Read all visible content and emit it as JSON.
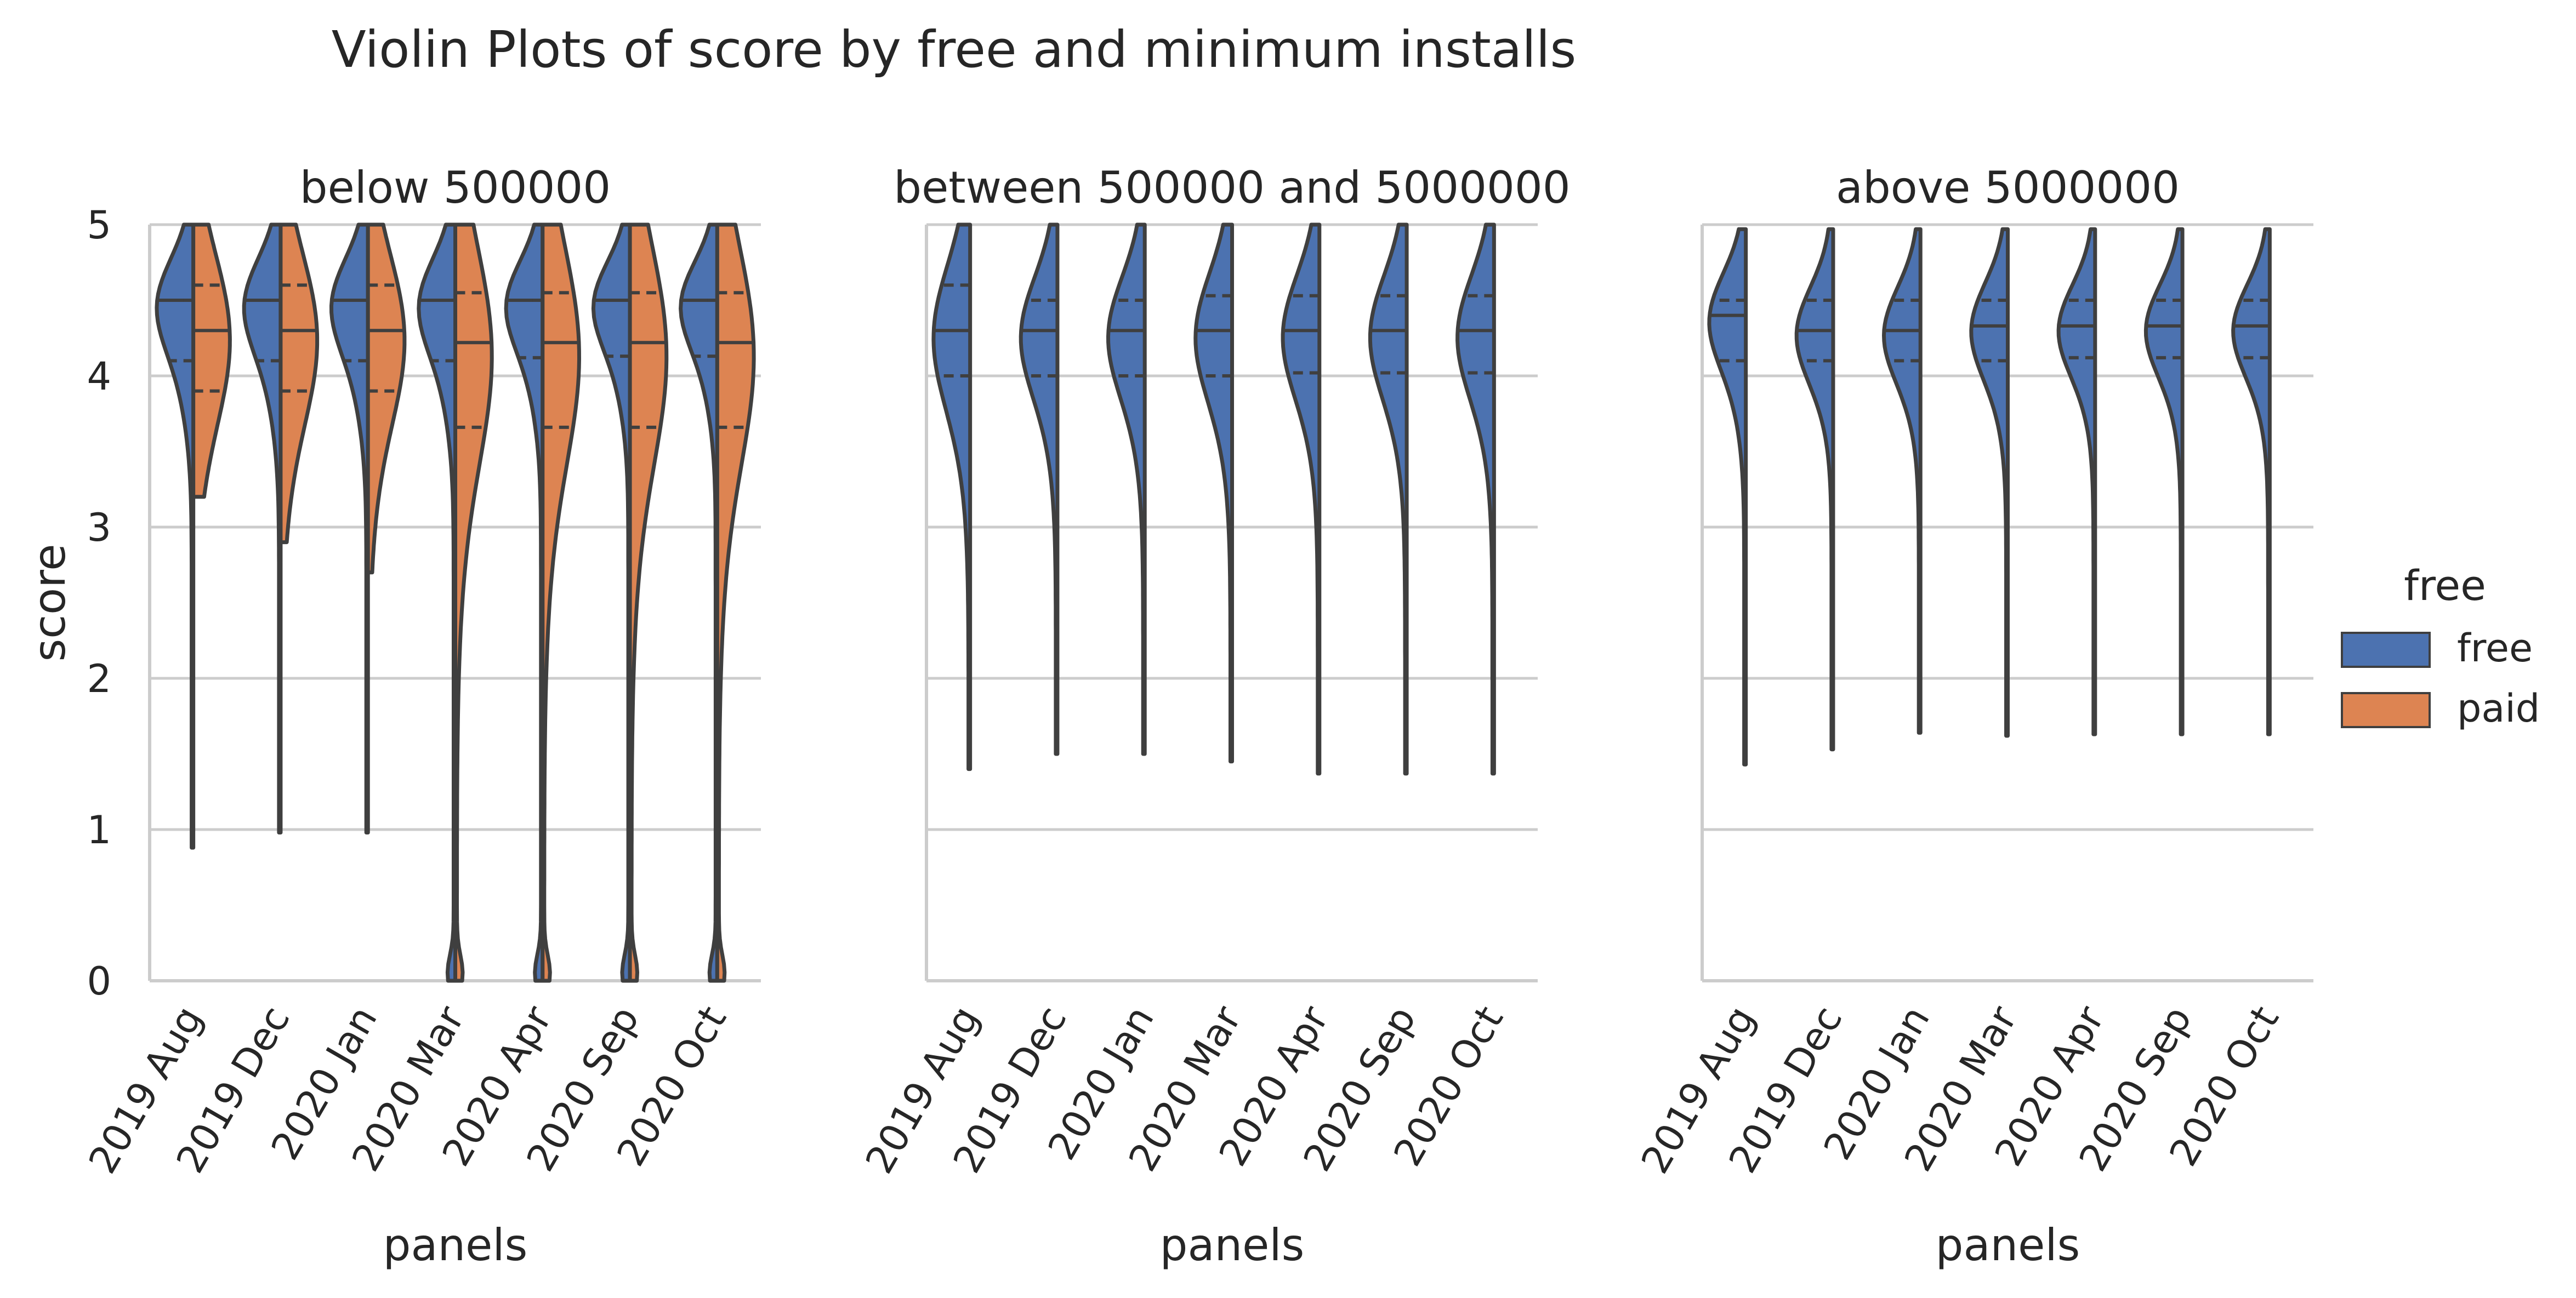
{
  "chart_data": {
    "type": "violin",
    "title": "Violin Plots of score by free and minimum installs",
    "ylabel": "score",
    "xlabel": "panels",
    "ylim": [
      0,
      5
    ],
    "yticks": [
      0,
      1,
      2,
      3,
      4,
      5
    ],
    "grid": "horizontal",
    "split": true,
    "inner": "quartile",
    "legend": {
      "title": "free",
      "placement": "right",
      "entries": [
        {
          "label": "free",
          "color": "#4c72b0"
        },
        {
          "label": "paid",
          "color": "#dd8452"
        }
      ]
    },
    "categories": [
      "2019 Aug",
      "2019 Dec",
      "2020 Jan",
      "2020 Mar",
      "2020 Apr",
      "2020 Sep",
      "2020 Oct"
    ],
    "panels": [
      {
        "title": "below 500000",
        "series": [
          {
            "name": "free",
            "min": [
              0.88,
              0.98,
              0.98,
              0.0,
              0.0,
              0.0,
              0.0
            ],
            "max": [
              5.0,
              5.0,
              5.0,
              5.0,
              5.0,
              5.0,
              5.0
            ],
            "q1": [
              4.1,
              4.1,
              4.1,
              4.1,
              4.12,
              4.13,
              4.13
            ],
            "median": [
              4.5,
              4.5,
              4.5,
              4.5,
              4.5,
              4.5,
              4.5
            ],
            "q3": [
              4.5,
              4.5,
              4.5,
              4.5,
              4.5,
              4.5,
              4.5
            ]
          },
          {
            "name": "paid",
            "min": [
              3.2,
              2.9,
              2.7,
              0.0,
              0.0,
              0.0,
              0.0
            ],
            "max": [
              5.0,
              5.0,
              5.0,
              5.0,
              5.0,
              5.0,
              5.0
            ],
            "q1": [
              3.9,
              3.9,
              3.9,
              3.66,
              3.66,
              3.66,
              3.66
            ],
            "median": [
              4.3,
              4.3,
              4.3,
              4.22,
              4.22,
              4.22,
              4.22
            ],
            "q3": [
              4.6,
              4.6,
              4.6,
              4.55,
              4.55,
              4.55,
              4.55
            ]
          }
        ]
      },
      {
        "title": "between 500000 and 5000000",
        "series": [
          {
            "name": "free",
            "min": [
              1.4,
              1.5,
              1.5,
              1.45,
              1.37,
              1.37,
              1.37
            ],
            "max": [
              5.0,
              5.0,
              5.0,
              5.0,
              5.0,
              5.0,
              5.0
            ],
            "q1": [
              4.0,
              4.0,
              4.0,
              4.0,
              4.02,
              4.02,
              4.02
            ],
            "median": [
              4.3,
              4.3,
              4.3,
              4.3,
              4.3,
              4.3,
              4.3
            ],
            "q3": [
              4.6,
              4.5,
              4.5,
              4.53,
              4.53,
              4.53,
              4.53
            ]
          }
        ]
      },
      {
        "title": "above 5000000",
        "series": [
          {
            "name": "free",
            "min": [
              1.43,
              1.53,
              1.64,
              1.62,
              1.63,
              1.63,
              1.63
            ],
            "max": [
              4.97,
              4.97,
              4.97,
              4.97,
              4.97,
              4.97,
              4.97
            ],
            "q1": [
              4.1,
              4.1,
              4.1,
              4.1,
              4.12,
              4.12,
              4.12
            ],
            "median": [
              4.4,
              4.3,
              4.3,
              4.33,
              4.33,
              4.33,
              4.33
            ],
            "q3": [
              4.5,
              4.5,
              4.5,
              4.5,
              4.5,
              4.5,
              4.5
            ]
          }
        ]
      }
    ]
  }
}
